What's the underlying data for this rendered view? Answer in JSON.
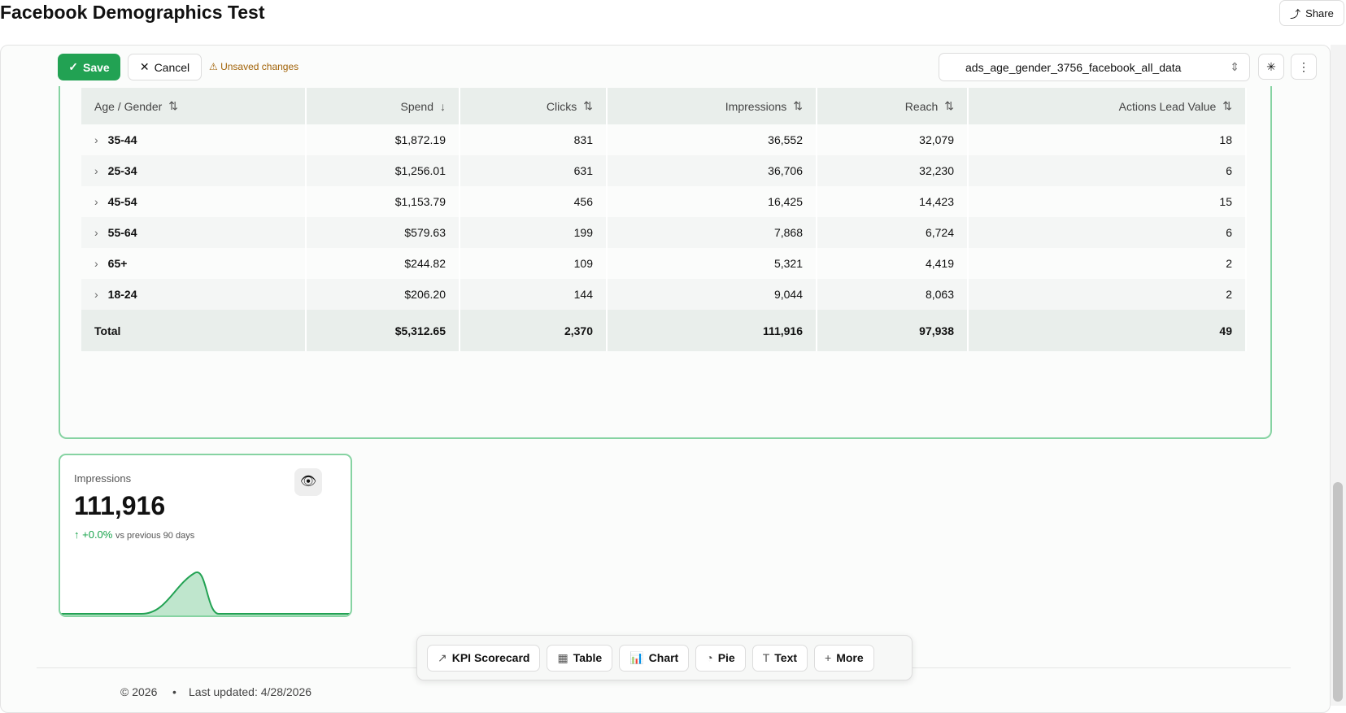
{
  "header": {
    "title": "Facebook Demographics Test",
    "share": "Share"
  },
  "toolbar": {
    "save": "Save",
    "cancel": "Cancel",
    "unsaved": "Unsaved changes",
    "datasource": "ads_age_gender_3756_facebook_all_data"
  },
  "table": {
    "headers": [
      "Age / Gender",
      "Spend",
      "Clicks",
      "Impressions",
      "Reach",
      "Actions Lead Value"
    ],
    "rows": [
      [
        "35-44",
        "$1,872.19",
        "831",
        "36,552",
        "32,079",
        "18"
      ],
      [
        "25-34",
        "$1,256.01",
        "631",
        "36,706",
        "32,230",
        "6"
      ],
      [
        "45-54",
        "$1,153.79",
        "456",
        "16,425",
        "14,423",
        "15"
      ],
      [
        "55-64",
        "$579.63",
        "199",
        "7,868",
        "6,724",
        "6"
      ],
      [
        "65+",
        "$244.82",
        "109",
        "5,321",
        "4,419",
        "2"
      ],
      [
        "18-24",
        "$206.20",
        "144",
        "9,044",
        "8,063",
        "2"
      ]
    ],
    "total": [
      "Total",
      "$5,312.65",
      "2,370",
      "111,916",
      "97,938",
      "49"
    ]
  },
  "kpi": {
    "label": "Impressions",
    "value": "111,916",
    "change": "+0.0%",
    "comparison": "vs previous 90 days"
  },
  "add_bar": [
    "KPI Scorecard",
    "Table",
    "Chart",
    "Pie",
    "Text",
    "More"
  ],
  "footer": {
    "copyright": "© 2026",
    "updated": "Last updated: 4/28/2026"
  }
}
